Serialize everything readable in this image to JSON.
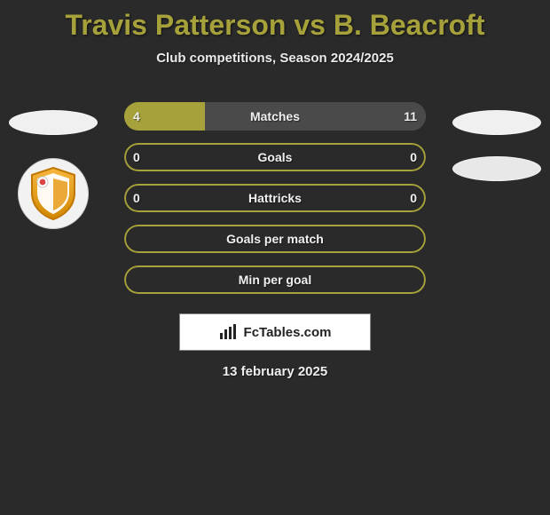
{
  "title": {
    "text": "Travis Patterson vs B. Beacroft",
    "color": "#a6a13a",
    "fontsize": 32
  },
  "subtitle": "Club competitions, Season 2024/2025",
  "background_color": "#2a2a2a",
  "player_left_color": "#a6a13a",
  "player_right_color": "#4a4a4a",
  "bar_outline_color": "#a6a13a",
  "text_color": "#f0f0f0",
  "bars": [
    {
      "label": "Matches",
      "left_value": "4",
      "right_value": "11",
      "left_pct": 26.7,
      "right_pct": 73.3
    },
    {
      "label": "Goals",
      "left_value": "0",
      "right_value": "0",
      "left_pct": 0,
      "right_pct": 0
    },
    {
      "label": "Hattricks",
      "left_value": "0",
      "right_value": "0",
      "left_pct": 0,
      "right_pct": 0
    },
    {
      "label": "Goals per match",
      "left_value": "",
      "right_value": "",
      "left_pct": 0,
      "right_pct": 0
    },
    {
      "label": "Min per goal",
      "left_value": "",
      "right_value": "",
      "left_pct": 0,
      "right_pct": 0
    }
  ],
  "attribution": "FcTables.com",
  "date": "13 february 2025",
  "badge": {
    "shield_fill_top": "#f5a623",
    "shield_fill_bottom": "#d08800",
    "shield_stroke": "#c07700",
    "inner_white": "#ffffff"
  }
}
